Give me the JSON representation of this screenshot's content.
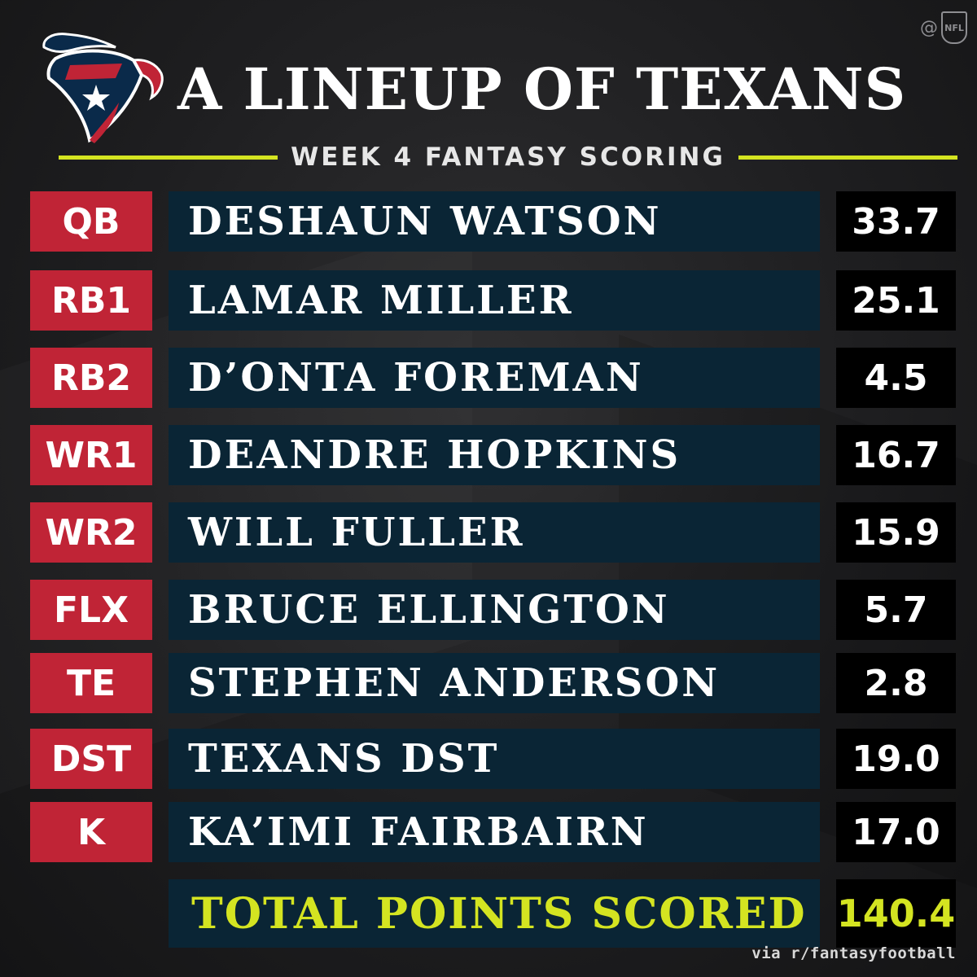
{
  "header": {
    "title": "A LINEUP OF TEXANS",
    "subtitle": "WEEK 4 FANTASY SCORING",
    "watermark_at": "@",
    "watermark_logo_text": "NFL"
  },
  "logo": {
    "name": "houston-texans-logo"
  },
  "lineup": [
    {
      "pos": "QB",
      "player": "DESHAUN WATSON",
      "points": "33.7"
    },
    {
      "pos": "RB1",
      "player": "LAMAR MILLER",
      "points": "25.1"
    },
    {
      "pos": "RB2",
      "player": "D’ONTA FOREMAN",
      "points": "4.5"
    },
    {
      "pos": "WR1",
      "player": "DEANDRE HOPKINS",
      "points": "16.7"
    },
    {
      "pos": "WR2",
      "player": "WILL FULLER",
      "points": "15.9"
    },
    {
      "pos": "FLX",
      "player": "BRUCE ELLINGTON",
      "points": "5.7"
    },
    {
      "pos": "TE",
      "player": "STEPHEN ANDERSON",
      "points": "2.8"
    },
    {
      "pos": "DST",
      "player": "TEXANS DST",
      "points": "19.0"
    },
    {
      "pos": "K",
      "player": "KA’IMI FAIRBAIRN",
      "points": "17.0"
    }
  ],
  "total": {
    "label": "TOTAL POINTS SCORED",
    "points": "140.4"
  },
  "footer": {
    "credit": "via r/fantasyfootball"
  },
  "colors": {
    "red": "#c02436",
    "navy": "#0a2535",
    "black": "#000000",
    "accent": "#d4e421"
  }
}
